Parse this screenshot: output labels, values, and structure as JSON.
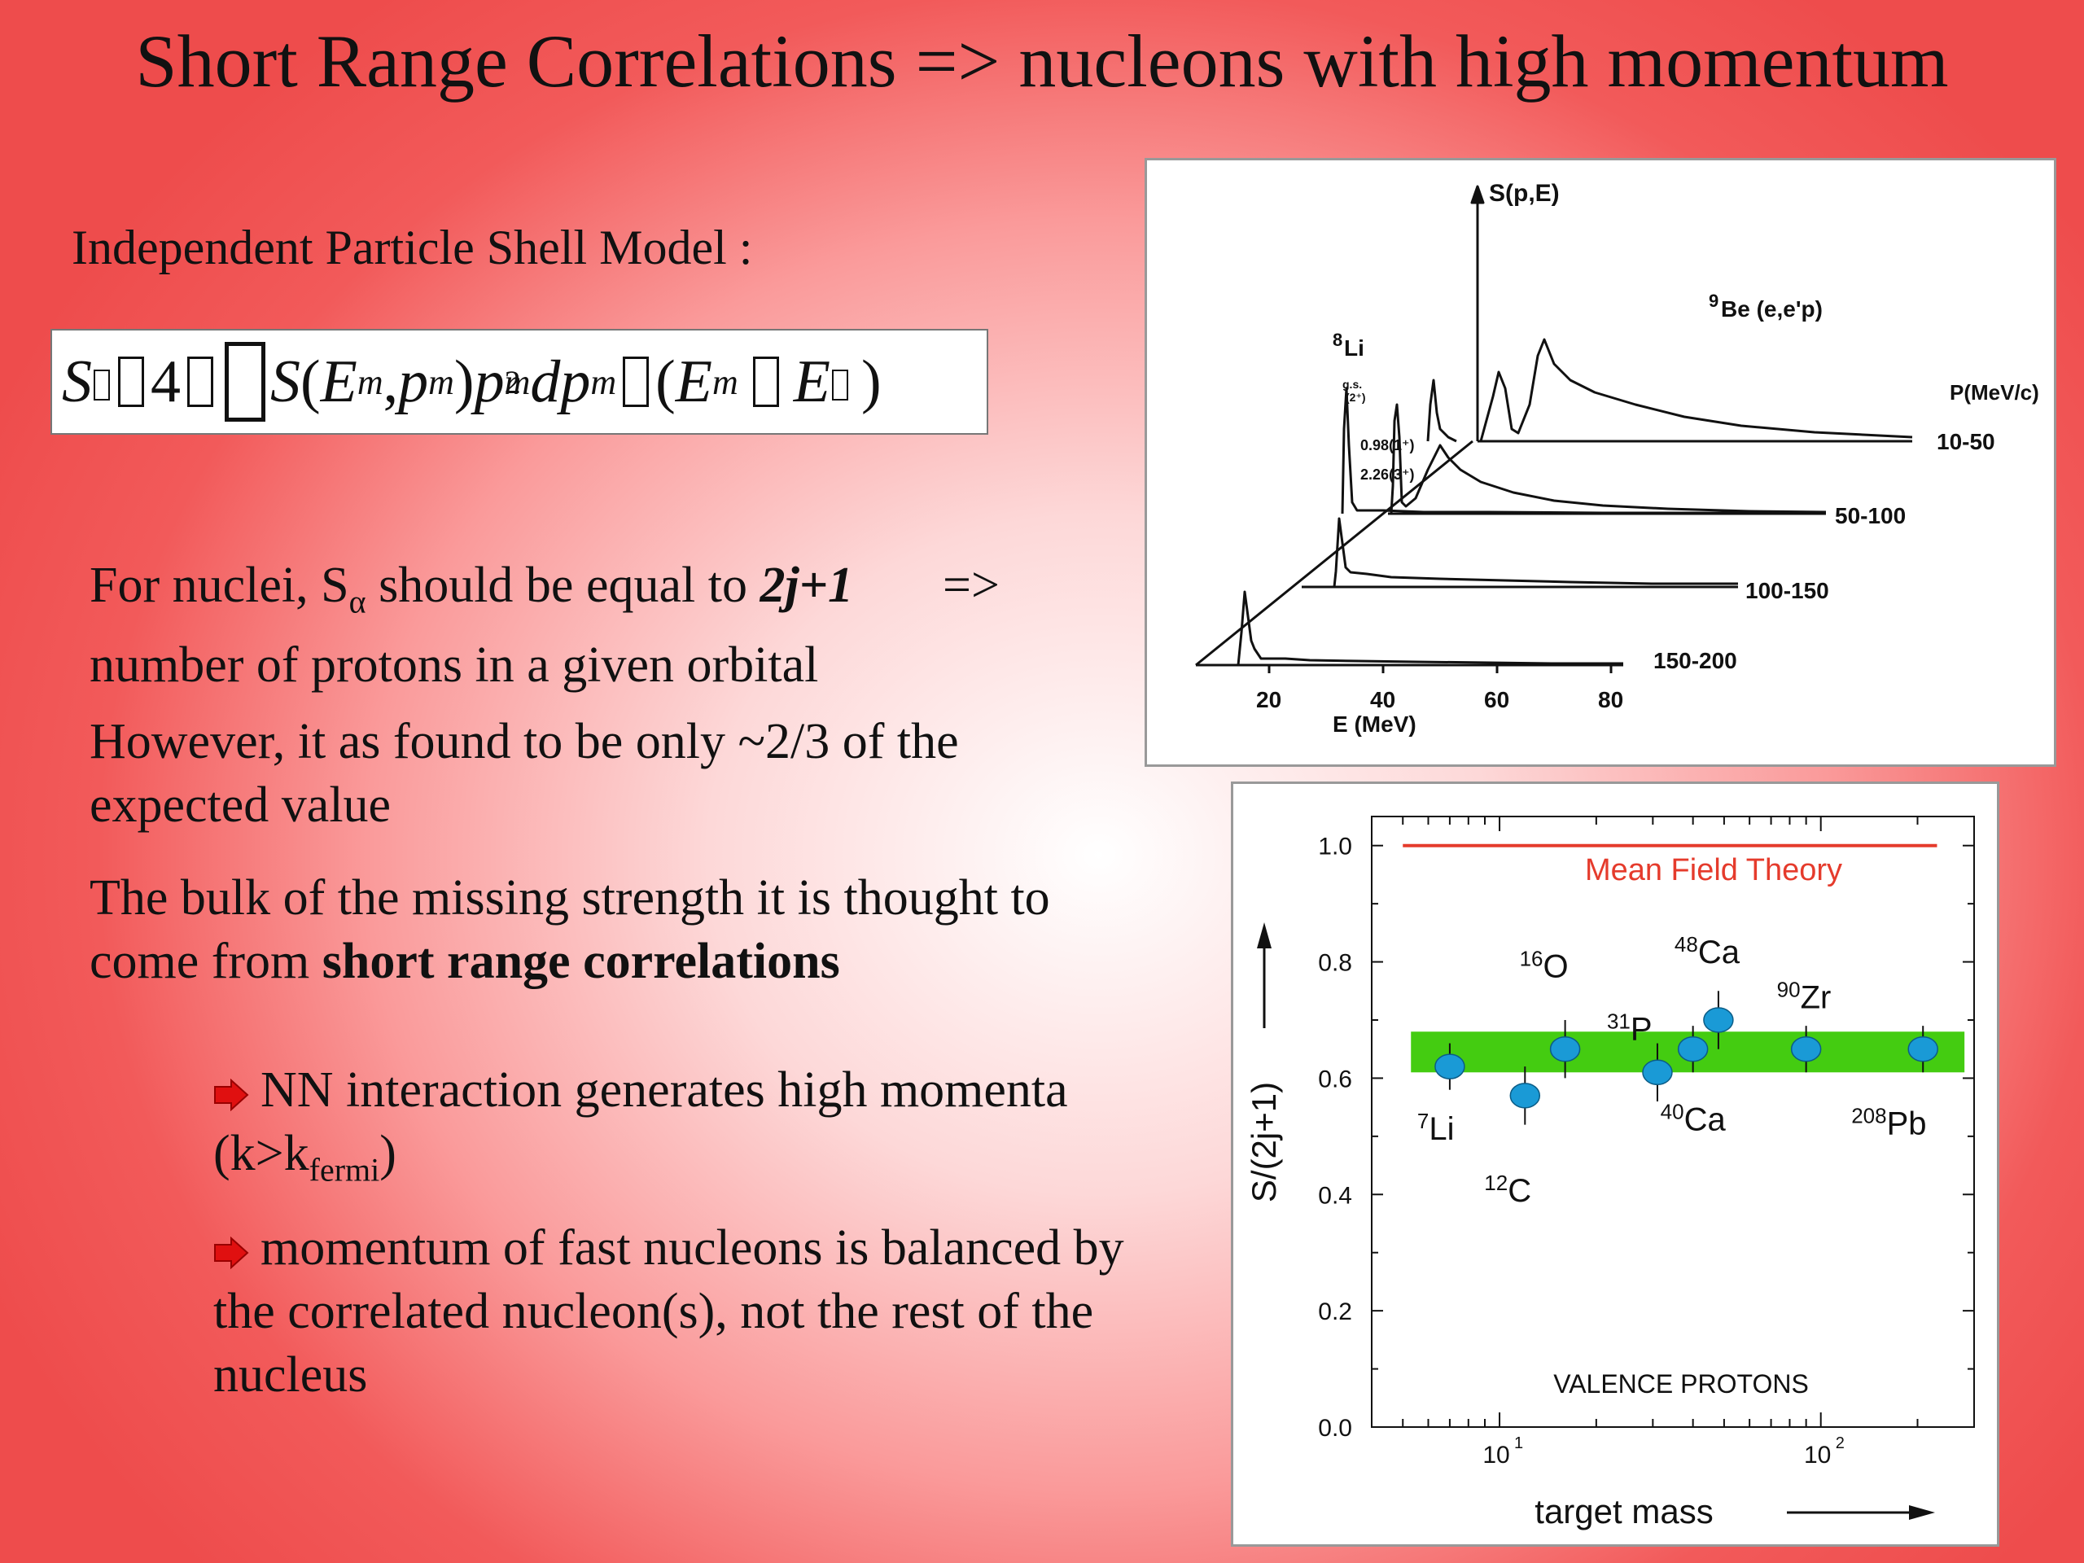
{
  "slide": {
    "title": "Short Range Correlations => nucleons with high momentum",
    "ipsm_label": "Independent Particle Shell Model :",
    "formula": {
      "lhs": "S",
      "four": "4",
      "S": "S",
      "E": "E",
      "p": "p",
      "m": "m",
      "two": "2",
      "d": "d"
    },
    "p1": {
      "a": "For nuclei, S",
      "alpha": "α",
      "b": " should be equal to ",
      "bold": "2j+1",
      "arrow": "=>",
      "line2": "number of protons in a given orbital"
    },
    "p2": "However, it as found to be only ~2/3 of the expected value",
    "p3": {
      "a": "The bulk of the missing strength it is thought to come from ",
      "bold": "short range correlations"
    },
    "bullets": {
      "b1a": "NN interaction generates high momenta (k>k",
      "b1sub": "fermi",
      "b1c": ")",
      "b2": "momentum of fast nucleons is balanced by the correlated nucleon(s), not the rest of the nucleus"
    }
  },
  "spectral_figure": {
    "y_label": "S(p,E)",
    "reaction": "Be (e,e'p)",
    "reaction_mass": "9",
    "state_label": "Li",
    "state_mass": "8",
    "annot_gs": "g.s.",
    "annot_gs2": "(2⁺)",
    "annot_a": "0.98(1⁺)",
    "annot_b": "2.26(3⁺)",
    "p_axis_label": "P(MeV/c)",
    "p_ranges": [
      "10-50",
      "50-100",
      "100-150",
      "150-200"
    ],
    "x_ticks": [
      "20",
      "40",
      "60",
      "80"
    ],
    "x_label": "E (MeV)"
  },
  "chart_data": {
    "type": "scatter",
    "xlabel": "target mass",
    "ylabel": "S/(2j+1)",
    "x_scale": "log",
    "xlim": [
      4,
      300
    ],
    "ylim": [
      0.0,
      1.05
    ],
    "y_ticks": [
      "0.0",
      "0.2",
      "0.4",
      "0.6",
      "0.8",
      "1.0"
    ],
    "x_ticks": [
      {
        "value": 10,
        "label": "10",
        "exp": "1"
      },
      {
        "value": 100,
        "label": "10",
        "exp": "2"
      }
    ],
    "mean_field": {
      "label": "Mean Field Theory",
      "value": 1.0,
      "color": "#e53b2c"
    },
    "band": {
      "low": 0.61,
      "high": 0.68,
      "color": "#44cc11"
    },
    "region_label": "VALENCE PROTONS",
    "marker_color": "#1a9ad6",
    "points": [
      {
        "mass": "7",
        "el": "Li",
        "x": 7,
        "y": 0.62,
        "err": 0.04
      },
      {
        "mass": "12",
        "el": "C",
        "x": 12,
        "y": 0.57,
        "err": 0.05
      },
      {
        "mass": "16",
        "el": "O",
        "x": 16,
        "y": 0.65,
        "err": 0.05
      },
      {
        "mass": "31",
        "el": "P",
        "x": 31,
        "y": 0.61,
        "err": 0.05
      },
      {
        "mass": "40",
        "el": "Ca",
        "x": 40,
        "y": 0.65,
        "err": 0.04
      },
      {
        "mass": "48",
        "el": "Ca",
        "x": 48,
        "y": 0.7,
        "err": 0.05
      },
      {
        "mass": "90",
        "el": "Zr",
        "x": 90,
        "y": 0.65,
        "err": 0.04
      },
      {
        "mass": "208",
        "el": "Pb",
        "x": 208,
        "y": 0.65,
        "err": 0.04
      }
    ]
  }
}
